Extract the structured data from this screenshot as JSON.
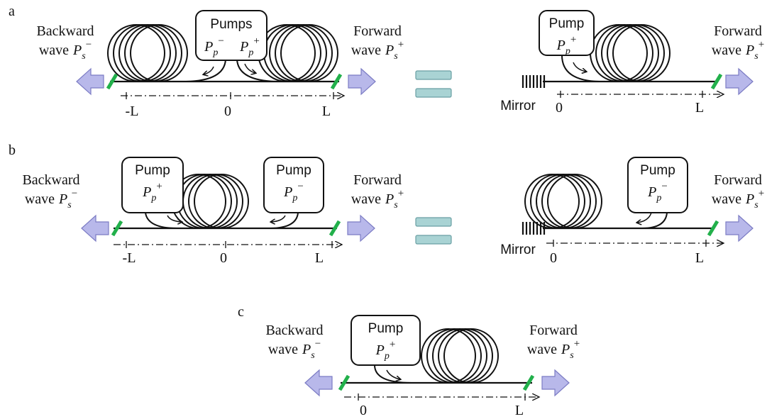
{
  "panels": [
    {
      "label": "a",
      "left": {
        "backward": {
          "line1": "Backward",
          "line2": "wave",
          "symbol": "P",
          "sub": "s",
          "sup": "−"
        },
        "pumps": {
          "title": "Pumps",
          "items": [
            {
              "symbol": "P",
              "sub": "p",
              "sup": "−"
            },
            {
              "symbol": "P",
              "sub": "p",
              "sup": "+"
            }
          ]
        },
        "forward": {
          "line1": "Forward",
          "line2": "wave",
          "symbol": "P",
          "sub": "s",
          "sup": "+"
        },
        "axis": [
          "-L",
          "0",
          "L"
        ]
      },
      "right": {
        "pump": {
          "title": "Pump",
          "symbol": "P",
          "sub": "p",
          "sup": "+"
        },
        "mirror": "Mirror",
        "forward": {
          "line1": "Forward",
          "line2": "wave",
          "symbol": "P",
          "sub": "s",
          "sup": "+"
        },
        "axis": [
          "0",
          "L"
        ]
      }
    },
    {
      "label": "b",
      "left": {
        "backward": {
          "line1": "Backward",
          "line2": "wave",
          "symbol": "P",
          "sub": "s",
          "sup": "−"
        },
        "pumps": [
          {
            "title": "Pump",
            "symbol": "P",
            "sub": "p",
            "sup": "+"
          },
          {
            "title": "Pump",
            "symbol": "P",
            "sub": "p",
            "sup": "−"
          }
        ],
        "forward": {
          "line1": "Forward",
          "line2": "wave",
          "symbol": "P",
          "sub": "s",
          "sup": "+"
        },
        "axis": [
          "-L",
          "0",
          "L"
        ]
      },
      "right": {
        "pump": {
          "title": "Pump",
          "symbol": "P",
          "sub": "p",
          "sup": "−"
        },
        "mirror": "Mirror",
        "forward": {
          "line1": "Forward",
          "line2": "wave",
          "symbol": "P",
          "sub": "s",
          "sup": "+"
        },
        "axis": [
          "0",
          "L"
        ]
      }
    },
    {
      "label": "c",
      "single": {
        "backward": {
          "line1": "Backward",
          "line2": "wave",
          "symbol": "P",
          "sub": "s",
          "sup": "−"
        },
        "pump": {
          "title": "Pump",
          "symbol": "P",
          "sub": "p",
          "sup": "+"
        },
        "forward": {
          "line1": "Forward",
          "line2": "wave",
          "symbol": "P",
          "sub": "s",
          "sup": "+"
        },
        "axis": [
          "0",
          "L"
        ]
      }
    }
  ]
}
